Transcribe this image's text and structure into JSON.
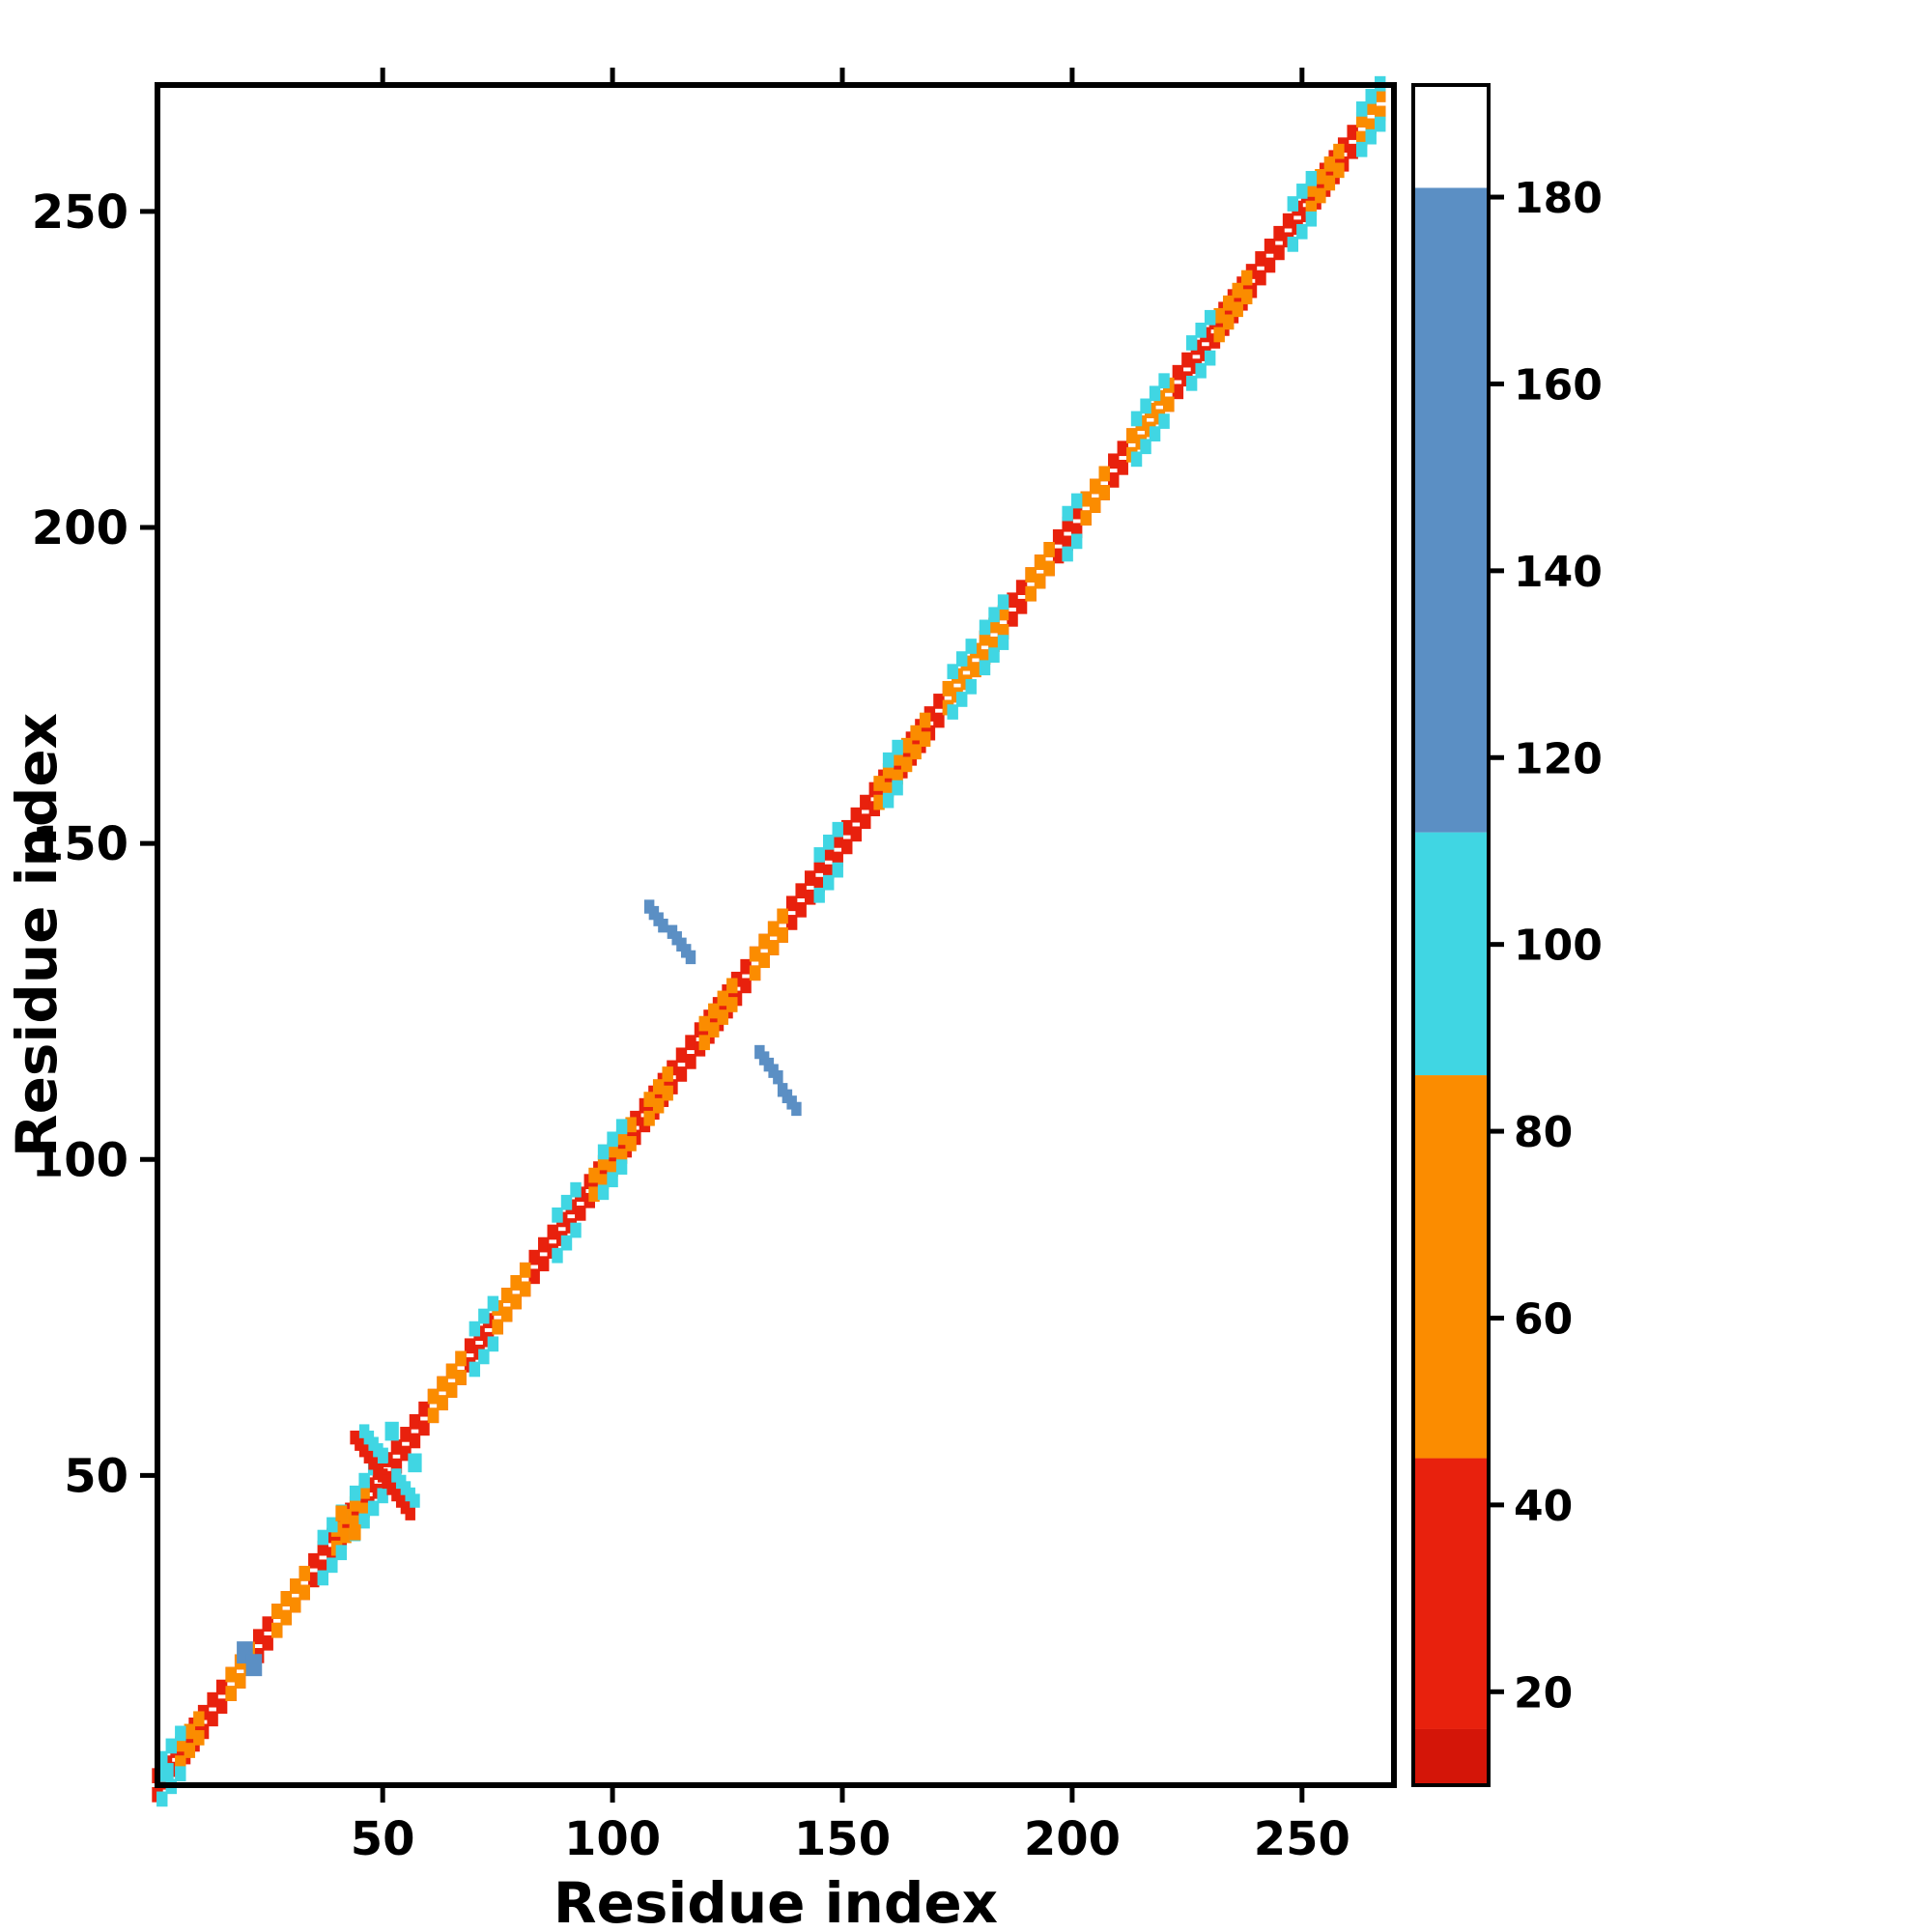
{
  "chart_data": {
    "type": "heatmap",
    "title": "",
    "xlabel": "Residue index",
    "ylabel": "Residue index",
    "x_range": [
      1,
      270
    ],
    "y_range": [
      1,
      270
    ],
    "x_ticks": [
      50,
      100,
      150,
      200,
      250
    ],
    "y_ticks": [
      50,
      100,
      150,
      200,
      250
    ],
    "grid": false,
    "background_color": "#ffffff",
    "border_color": "#000000",
    "colorbar": {
      "min": 10,
      "max": 192,
      "ticks": [
        20,
        40,
        60,
        80,
        100,
        120,
        140,
        160,
        180
      ],
      "segments": [
        {
          "from": 10,
          "to": 16,
          "color": "#d41508"
        },
        {
          "from": 16,
          "to": 45,
          "color": "#e8210d"
        },
        {
          "from": 45,
          "to": 86,
          "color": "#fb8c00"
        },
        {
          "from": 86,
          "to": 112,
          "color": "#40d6e3"
        },
        {
          "from": 112,
          "to": 181,
          "color": "#5b8fc4"
        },
        {
          "from": 181,
          "to": 192,
          "color": "#ffffff"
        }
      ]
    },
    "diagonal_runs": [
      {
        "from": 1,
        "to": 268,
        "value": 25,
        "band": "inner"
      },
      {
        "from": 6,
        "to": 11,
        "value": 65,
        "band": "inner"
      },
      {
        "from": 17,
        "to": 22,
        "value": 65,
        "band": "inner"
      },
      {
        "from": 27,
        "to": 34,
        "value": 65,
        "band": "inner"
      },
      {
        "from": 40,
        "to": 47,
        "value": 65,
        "band": "inner"
      },
      {
        "from": 61,
        "to": 67,
        "value": 65,
        "band": "inner"
      },
      {
        "from": 75,
        "to": 81,
        "value": 65,
        "band": "inner"
      },
      {
        "from": 96,
        "to": 104,
        "value": 65,
        "band": "inner"
      },
      {
        "from": 108,
        "to": 113,
        "value": 65,
        "band": "inner"
      },
      {
        "from": 120,
        "to": 127,
        "value": 65,
        "band": "inner"
      },
      {
        "from": 131,
        "to": 137,
        "value": 65,
        "band": "inner"
      },
      {
        "from": 158,
        "to": 168,
        "value": 65,
        "band": "inner"
      },
      {
        "from": 173,
        "to": 186,
        "value": 65,
        "band": "inner"
      },
      {
        "from": 191,
        "to": 196,
        "value": 65,
        "band": "inner"
      },
      {
        "from": 203,
        "to": 208,
        "value": 65,
        "band": "inner"
      },
      {
        "from": 213,
        "to": 221,
        "value": 65,
        "band": "inner"
      },
      {
        "from": 232,
        "to": 238,
        "value": 65,
        "band": "inner"
      },
      {
        "from": 252,
        "to": 258,
        "value": 65,
        "band": "inner"
      },
      {
        "from": 263,
        "to": 267,
        "value": 65,
        "band": "inner"
      },
      {
        "from": 2,
        "to": 7,
        "value": 100,
        "band": "halo"
      },
      {
        "from": 37,
        "to": 41,
        "value": 100,
        "band": "halo"
      },
      {
        "from": 44,
        "to": 50,
        "value": 100,
        "band": "halo"
      },
      {
        "from": 70,
        "to": 74,
        "value": 100,
        "band": "halo"
      },
      {
        "from": 88,
        "to": 93,
        "value": 100,
        "band": "halo"
      },
      {
        "from": 98,
        "to": 102,
        "value": 100,
        "band": "halo"
      },
      {
        "from": 145,
        "to": 149,
        "value": 100,
        "band": "halo"
      },
      {
        "from": 160,
        "to": 163,
        "value": 100,
        "band": "halo"
      },
      {
        "from": 174,
        "to": 178,
        "value": 100,
        "band": "halo"
      },
      {
        "from": 181,
        "to": 186,
        "value": 100,
        "band": "halo"
      },
      {
        "from": 199,
        "to": 202,
        "value": 100,
        "band": "halo"
      },
      {
        "from": 214,
        "to": 220,
        "value": 100,
        "band": "halo"
      },
      {
        "from": 226,
        "to": 230,
        "value": 100,
        "band": "halo"
      },
      {
        "from": 248,
        "to": 252,
        "value": 100,
        "band": "halo"
      },
      {
        "from": 263,
        "to": 267,
        "value": 100,
        "band": "halo"
      }
    ],
    "antidiagonal_runs": [
      {
        "x_from": 44,
        "y_from": 56,
        "length": 13,
        "value": 25,
        "mirror": false
      },
      {
        "x_from": 46,
        "y_from": 57,
        "length": 5,
        "value": 100,
        "mirror": true
      },
      {
        "x_from": 108,
        "y_from": 140,
        "length": 4,
        "value": 150,
        "mirror": true
      },
      {
        "x_from": 113,
        "y_from": 136,
        "length": 5,
        "value": 150,
        "mirror": true
      }
    ],
    "spots": [
      {
        "x": 20,
        "y": 22,
        "value": 150,
        "size": 3.5
      },
      {
        "x": 22,
        "y": 20,
        "value": 150,
        "size": 3.5
      },
      {
        "x": 52,
        "y": 57,
        "value": 100,
        "size": 3
      },
      {
        "x": 57,
        "y": 52,
        "value": 100,
        "size": 3
      },
      {
        "x": 41,
        "y": 44,
        "value": 65,
        "size": 2.5
      },
      {
        "x": 44,
        "y": 41,
        "value": 65,
        "size": 2.5
      },
      {
        "x": 3,
        "y": 3,
        "value": 100,
        "size": 3
      }
    ]
  }
}
